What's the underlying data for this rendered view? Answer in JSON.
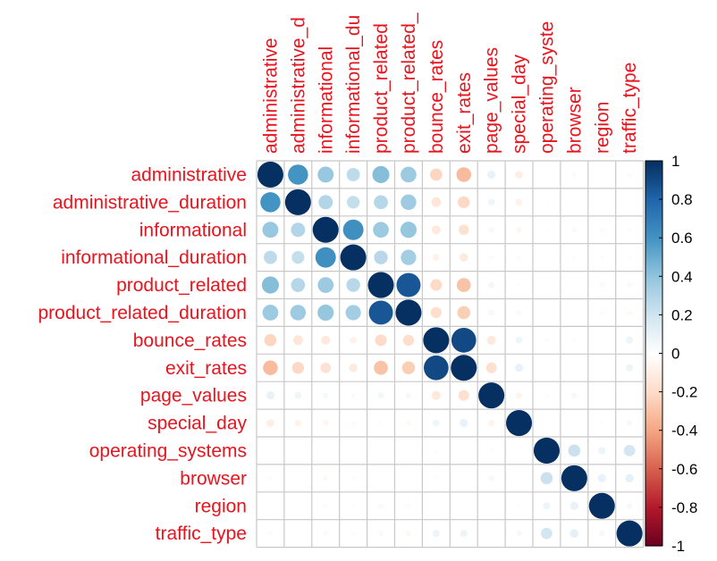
{
  "chart_data": {
    "type": "heatmap",
    "subtype": "correlation-matrix-circles",
    "variables": [
      "administrative",
      "administrative_duration",
      "informational",
      "informational_duration",
      "product_related",
      "product_related_duration",
      "bounce_rates",
      "exit_rates",
      "page_values",
      "special_day",
      "operating_systems",
      "browser",
      "region",
      "traffic_type"
    ],
    "column_labels_visible": [
      "administrative",
      "administrative_d",
      "informational",
      "informational_du",
      "product_related",
      "product_related_",
      "bounce_rates",
      "exit_rates",
      "page_values",
      "special_day",
      "operating_syste",
      "browser",
      "region",
      "traffic_type"
    ],
    "matrix": [
      [
        1.0,
        0.6,
        0.38,
        0.26,
        0.43,
        0.37,
        -0.22,
        -0.32,
        0.1,
        -0.09,
        -0.01,
        -0.03,
        -0.01,
        -0.03
      ],
      [
        0.6,
        1.0,
        0.3,
        0.24,
        0.29,
        0.36,
        -0.14,
        -0.21,
        0.07,
        -0.07,
        -0.01,
        -0.01,
        -0.01,
        -0.01
      ],
      [
        0.38,
        0.3,
        1.0,
        0.62,
        0.37,
        0.39,
        -0.12,
        -0.16,
        0.05,
        -0.05,
        -0.01,
        -0.04,
        -0.03,
        -0.03
      ],
      [
        0.26,
        0.24,
        0.62,
        1.0,
        0.28,
        0.35,
        -0.07,
        -0.11,
        0.03,
        -0.03,
        -0.01,
        -0.02,
        -0.02,
        -0.02
      ],
      [
        0.43,
        0.29,
        0.37,
        0.28,
        1.0,
        0.86,
        -0.2,
        -0.29,
        0.06,
        -0.02,
        0.0,
        -0.01,
        -0.04,
        -0.04
      ],
      [
        0.37,
        0.36,
        0.39,
        0.35,
        0.86,
        1.0,
        -0.18,
        -0.25,
        0.05,
        -0.04,
        0.01,
        -0.01,
        -0.03,
        -0.04
      ],
      [
        -0.22,
        -0.14,
        -0.12,
        -0.07,
        -0.2,
        -0.18,
        1.0,
        0.91,
        -0.12,
        0.07,
        0.02,
        -0.02,
        -0.01,
        0.08
      ],
      [
        -0.32,
        -0.21,
        -0.16,
        -0.11,
        -0.29,
        -0.25,
        0.91,
        1.0,
        -0.17,
        0.1,
        0.01,
        -0.0,
        -0.01,
        0.08
      ],
      [
        0.1,
        0.07,
        0.05,
        0.03,
        0.06,
        0.05,
        -0.12,
        -0.17,
        1.0,
        -0.06,
        0.02,
        0.05,
        0.01,
        0.01
      ],
      [
        -0.09,
        -0.07,
        -0.05,
        -0.03,
        -0.02,
        -0.04,
        0.07,
        0.1,
        -0.06,
        1.0,
        0.01,
        0.0,
        -0.02,
        0.05
      ],
      [
        -0.01,
        -0.01,
        -0.01,
        -0.01,
        0.0,
        0.01,
        0.02,
        0.01,
        0.02,
        0.01,
        1.0,
        0.22,
        0.08,
        0.19
      ],
      [
        -0.03,
        -0.01,
        -0.04,
        -0.02,
        -0.01,
        -0.01,
        -0.02,
        -0.0,
        0.05,
        0.0,
        0.22,
        1.0,
        0.1,
        0.11
      ],
      [
        -0.01,
        -0.01,
        -0.03,
        -0.02,
        -0.04,
        -0.03,
        -0.01,
        -0.01,
        0.01,
        -0.02,
        0.08,
        0.1,
        1.0,
        0.05
      ],
      [
        -0.03,
        -0.01,
        -0.03,
        -0.02,
        -0.04,
        -0.04,
        0.08,
        0.08,
        0.01,
        0.05,
        0.19,
        0.11,
        0.05,
        1.0
      ]
    ],
    "color_scale": {
      "range": [
        -1,
        1
      ],
      "ticks": [
        "1",
        "0.8",
        "0.6",
        "0.4",
        "0.2",
        "0",
        "-0.2",
        "-0.4",
        "-0.6",
        "-0.8",
        "-1"
      ],
      "stops": [
        {
          "value": -1.0,
          "color": "#67001f"
        },
        {
          "value": -0.8,
          "color": "#b2182b"
        },
        {
          "value": -0.6,
          "color": "#d6604d"
        },
        {
          "value": -0.4,
          "color": "#f4a582"
        },
        {
          "value": -0.2,
          "color": "#fddbc7"
        },
        {
          "value": 0.0,
          "color": "#ffffff"
        },
        {
          "value": 0.2,
          "color": "#d1e5f0"
        },
        {
          "value": 0.4,
          "color": "#92c5de"
        },
        {
          "value": 0.6,
          "color": "#4393c3"
        },
        {
          "value": 0.8,
          "color": "#2166ac"
        },
        {
          "value": 1.0,
          "color": "#053061"
        }
      ]
    },
    "label_color": "#e8141e",
    "grid_color": "#c8c8c8",
    "legend_position": "right",
    "method": "circle"
  }
}
